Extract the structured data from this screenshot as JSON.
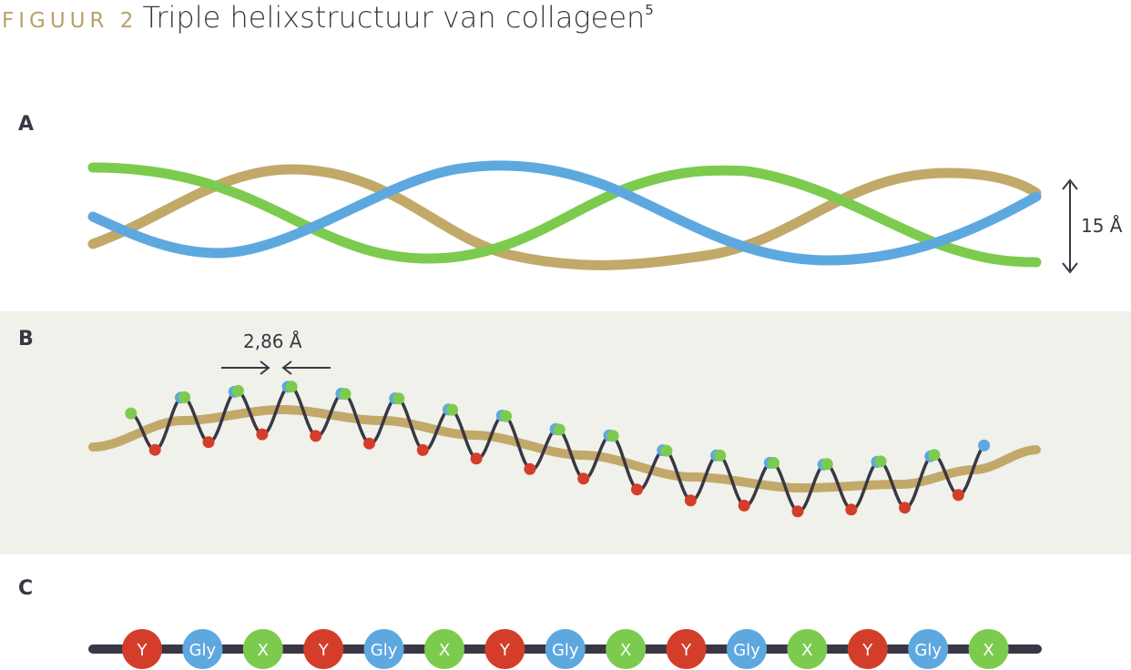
{
  "header": {
    "figure_label": "FIGUUR 2",
    "title": "Triple helixstructuur van collageen",
    "reference": "5"
  },
  "panels": {
    "a": {
      "label": "A",
      "diameter_label": "15 Å"
    },
    "b": {
      "label": "B",
      "rise_label": "2,86 Å"
    },
    "c": {
      "label": "C",
      "sequence": [
        "Y",
        "Gly",
        "X",
        "Y",
        "Gly",
        "X",
        "Y",
        "Gly",
        "X",
        "Y",
        "Gly",
        "X",
        "Y",
        "Gly",
        "X"
      ]
    }
  },
  "colors": {
    "gold": "#c2a96a",
    "blue": "#5ea8e0",
    "green": "#7ccb4e",
    "red": "#d43d2a",
    "dark": "#3a3744",
    "band": "#eff1ea",
    "figure_label": "#b8a16a"
  },
  "residue_colors": {
    "Y": "#d43d2a",
    "Gly": "#5ea8e0",
    "X": "#7ccb4e"
  }
}
